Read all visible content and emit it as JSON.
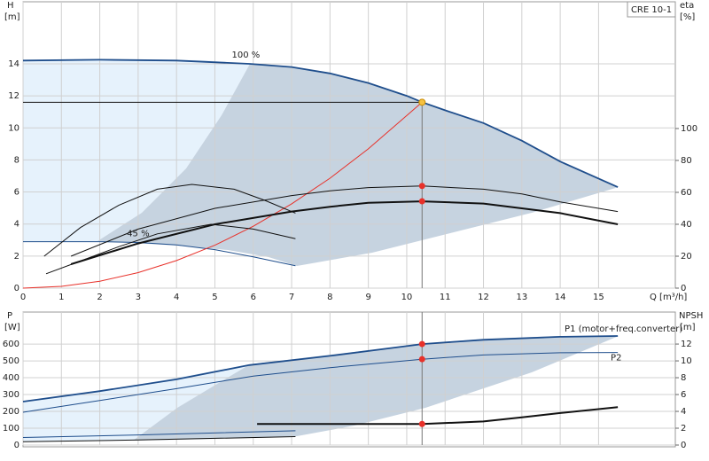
{
  "chart_data": [
    {
      "type": "line",
      "title": "CRE 10-1",
      "x_label": "Q [m³/h]",
      "y_label": "H",
      "y_unit": "[m]",
      "y2_label": "eta",
      "y2_unit": "[%]",
      "xlim": [
        0,
        17
      ],
      "xticks": [
        0,
        1,
        2,
        3,
        4,
        5,
        6,
        7,
        8,
        9,
        10,
        11,
        12,
        13,
        14,
        15
      ],
      "ylim": [
        0,
        17.87
      ],
      "yticks": [
        0,
        2,
        4,
        6,
        8,
        10,
        12,
        14
      ],
      "y2lim": [
        0,
        179.4
      ],
      "y2ticks": [
        0,
        20,
        40,
        60,
        80,
        100
      ],
      "grid": true,
      "series": [
        {
          "name": "100 %",
          "color": "#1f4e8c",
          "x": [
            0,
            2,
            4,
            5.9,
            7,
            8,
            9,
            10,
            10.4,
            11,
            12,
            13,
            14,
            15.5
          ],
          "values": [
            14.2,
            14.25,
            14.2,
            14.0,
            13.8,
            13.4,
            12.8,
            12.0,
            11.6,
            11.1,
            10.3,
            9.2,
            7.9,
            6.3
          ]
        },
        {
          "name": "45 %",
          "color": "#1f4e8c",
          "x": [
            0,
            2,
            3,
            4,
            5,
            6,
            7.1
          ],
          "values": [
            2.9,
            2.9,
            2.85,
            2.7,
            2.4,
            1.95,
            1.4
          ]
        },
        {
          "color": "#e8312a",
          "x": [
            0,
            1,
            2,
            3,
            4,
            5,
            6,
            7,
            8,
            9,
            10.4
          ],
          "values": [
            0,
            0.11,
            0.43,
            0.97,
            1.72,
            2.68,
            3.86,
            5.26,
            6.86,
            8.69,
            11.6
          ]
        },
        {
          "color": "#111111",
          "axis": "y2",
          "x": [
            1.25,
            3,
            5,
            7,
            8,
            9,
            10.4,
            12,
            13,
            14,
            15.5
          ],
          "values": [
            20,
            37,
            50,
            58,
            61,
            63,
            64,
            62,
            59,
            54,
            48
          ]
        },
        {
          "color": "#111111",
          "axis": "y2",
          "x": [
            1.25,
            3,
            5,
            7,
            8,
            9,
            10.4,
            12,
            13,
            14,
            15.5
          ],
          "values": [
            15,
            28,
            40,
            48,
            51,
            53.5,
            54.4,
            53,
            50,
            47,
            40
          ]
        },
        {
          "color": "#111111",
          "axis": "y2",
          "x": [
            0.55,
            1.5,
            2.5,
            3.5,
            4.4,
            5.5,
            6.3,
            7.1
          ],
          "values": [
            20,
            38,
            52,
            62,
            65,
            62,
            55,
            47
          ]
        },
        {
          "color": "#111111",
          "axis": "y2",
          "x": [
            0.6,
            1.5,
            2.5,
            3.5,
            4.9,
            6,
            7.1
          ],
          "values": [
            9,
            17,
            26,
            34,
            40,
            37,
            31
          ]
        }
      ],
      "points": [
        {
          "x": 10.4,
          "y": 11.6,
          "color": "#f5c242"
        },
        {
          "x": 10.4,
          "y": 64,
          "axis": "y2",
          "color": "#e8312a"
        },
        {
          "x": 10.4,
          "y": 54.4,
          "axis": "y2",
          "color": "#e8312a"
        }
      ]
    },
    {
      "type": "line",
      "y_label": "P",
      "y_unit": "[W]",
      "y2_label": "NPSH",
      "y2_unit": "[m]",
      "xlim": [
        0,
        17
      ],
      "ylim": [
        0,
        790
      ],
      "yticks": [
        0,
        100,
        200,
        300,
        400,
        500,
        600
      ],
      "y2lim": [
        0,
        15.8
      ],
      "y2ticks": [
        0,
        2,
        4,
        6,
        8,
        10,
        12
      ],
      "grid": true,
      "series": [
        {
          "name": "P1 (motor+freq.converter)",
          "color": "#1f4e8c",
          "x": [
            0,
            2,
            4,
            5.9,
            8,
            10.4,
            12,
            14,
            15.5
          ],
          "values": [
            258,
            320,
            390,
            475,
            530,
            600,
            625,
            643,
            648
          ]
        },
        {
          "name": "P2",
          "color": "#1f4e8c",
          "x": [
            0,
            2,
            4,
            6,
            8,
            10.4,
            12,
            14,
            15.5
          ],
          "values": [
            195,
            265,
            335,
            410,
            460,
            510,
            535,
            548,
            550
          ]
        },
        {
          "color": "#1f4e8c",
          "x": [
            0,
            3,
            7.1
          ],
          "values": [
            45,
            60,
            85
          ]
        },
        {
          "color": "#111111",
          "axis": "y2",
          "x": [
            0,
            3,
            7.1
          ],
          "values": [
            0.4,
            0.6,
            1.0
          ]
        },
        {
          "color": "#111111",
          "axis": "y2",
          "x": [
            6.1,
            8,
            10.4,
            12,
            13,
            14,
            15.5
          ],
          "values": [
            2.5,
            2.5,
            2.5,
            2.8,
            3.3,
            3.8,
            4.5
          ]
        }
      ],
      "points": [
        {
          "x": 10.4,
          "y": 600,
          "color": "#e8312a"
        },
        {
          "x": 10.4,
          "y": 510,
          "color": "#e8312a"
        },
        {
          "x": 10.4,
          "y": 2.5,
          "axis": "y2",
          "color": "#e8312a"
        }
      ]
    }
  ]
}
